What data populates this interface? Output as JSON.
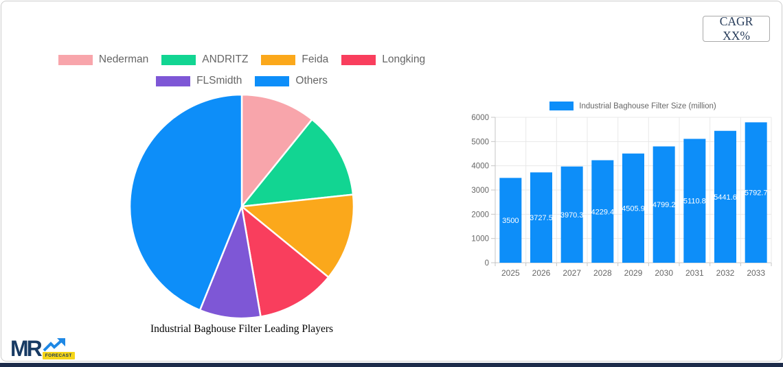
{
  "cagr_label": "CAGR XX%",
  "logo": {
    "text": "MR",
    "badge": "FORECAST",
    "icon": "trend-up-arrow-icon"
  },
  "colors": {
    "bar_blue": "#0d8ef9",
    "grid": "#e8e8e8",
    "axis": "#c4c4c4",
    "tick_text": "#666666",
    "value_label": "#ffffff",
    "footer_navy": "#1c2b4a"
  },
  "chart_data": [
    {
      "type": "pie",
      "title": "Industrial Baghouse Filter Leading Players",
      "labels": [
        "Nederman",
        "ANDRITZ",
        "Feida",
        "Longking",
        "FLSmidth",
        "Others"
      ],
      "values": [
        10.8,
        12.5,
        12.6,
        11.4,
        8.8,
        43.9
      ],
      "colors": [
        "#f8a5ab",
        "#12d592",
        "#fba81b",
        "#f93e5d",
        "#7e57d6",
        "#0d8ef9"
      ],
      "unit": "percent_share",
      "start_angle_deg": 0,
      "direction": "clockwise",
      "legend_position": "top",
      "legend_rows": [
        4,
        2
      ]
    },
    {
      "type": "bar",
      "legend_label": "Industrial Baghouse Filter Size (million)",
      "categories": [
        "2025",
        "2026",
        "2027",
        "2028",
        "2029",
        "2030",
        "2031",
        "2032",
        "2033"
      ],
      "values": [
        3500,
        3727.5,
        3970.3,
        4229.4,
        4505.9,
        4799.2,
        5110.8,
        5441.6,
        5792.7
      ],
      "bar_color": "#0d8ef9",
      "ylim": [
        0,
        6000
      ],
      "yticks": [
        0,
        1000,
        2000,
        3000,
        4000,
        5000,
        6000
      ],
      "grid": true,
      "legend_position": "top",
      "value_labels_inside_bars": true
    }
  ]
}
